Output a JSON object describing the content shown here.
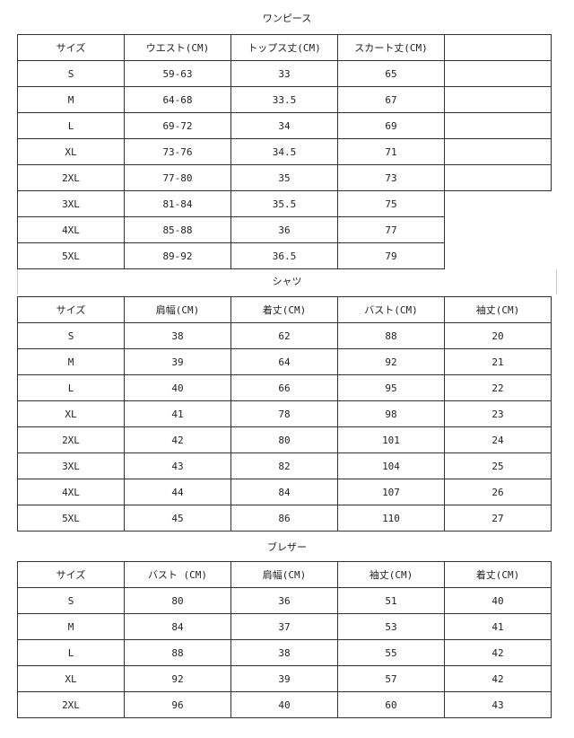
{
  "onepiece": {
    "title": "ワンピース",
    "headers": [
      "サイズ",
      "ウエスト(CM)",
      "トップス丈(CM)",
      "スカート丈(CM)",
      ""
    ],
    "rows": [
      [
        "S",
        "59-63",
        "33",
        "65",
        ""
      ],
      [
        "M",
        "64-68",
        "33.5",
        "67",
        ""
      ],
      [
        "L",
        "69-72",
        "34",
        "69",
        ""
      ],
      [
        "XL",
        "73-76",
        "34.5",
        "71",
        ""
      ],
      [
        "2XL",
        "77-80",
        "35",
        "73",
        ""
      ],
      [
        "3XL",
        "81-84",
        "35.5",
        "75"
      ],
      [
        "4XL",
        "85-88",
        "36",
        "77"
      ],
      [
        "5XL",
        "89-92",
        "36.5",
        "79"
      ]
    ]
  },
  "shirt": {
    "title": "シャツ",
    "headers": [
      "サイズ",
      "肩幅(CM)",
      "着丈(CM)",
      "バスト(CM)",
      "袖丈(CM)"
    ],
    "rows": [
      [
        "S",
        "38",
        "62",
        "88",
        "20"
      ],
      [
        "M",
        "39",
        "64",
        "92",
        "21"
      ],
      [
        "L",
        "40",
        "66",
        "95",
        "22"
      ],
      [
        "XL",
        "41",
        "78",
        "98",
        "23"
      ],
      [
        "2XL",
        "42",
        "80",
        "101",
        "24"
      ],
      [
        "3XL",
        "43",
        "82",
        "104",
        "25"
      ],
      [
        "4XL",
        "44",
        "84",
        "107",
        "26"
      ],
      [
        "5XL",
        "45",
        "86",
        "110",
        "27"
      ]
    ]
  },
  "blazer": {
    "title": "ブレザー",
    "headers": [
      "サイズ",
      "バスト (CM)",
      "肩幅(CM)",
      "袖丈(CM)",
      "着丈(CM)"
    ],
    "rows": [
      [
        "S",
        "80",
        "36",
        "51",
        "40"
      ],
      [
        "M",
        "84",
        "37",
        "53",
        "41"
      ],
      [
        "L",
        "88",
        "38",
        "55",
        "42"
      ],
      [
        "XL",
        "92",
        "39",
        "57",
        "42"
      ],
      [
        "2XL",
        "96",
        "40",
        "60",
        "43"
      ]
    ]
  }
}
